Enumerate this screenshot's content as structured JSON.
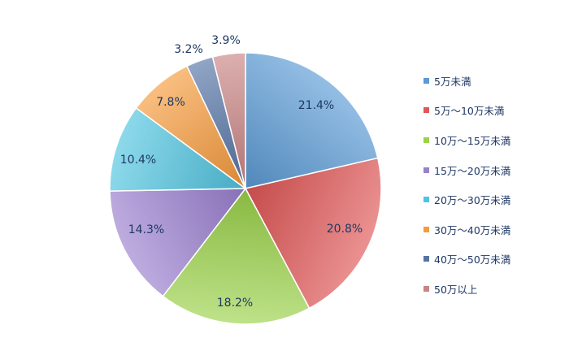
{
  "chart_data": {
    "type": "pie",
    "title": "",
    "series": [
      {
        "categories": [
          "5万未満",
          "5万～10万未満",
          "10万～15万未満",
          "15万～20万未満",
          "20万～30万未満",
          "30万～40万未満",
          "40万～50万未満",
          "50万以上"
        ],
        "values": [
          21.4,
          20.8,
          18.2,
          14.3,
          10.4,
          7.8,
          3.2,
          3.9
        ]
      }
    ],
    "data_labels": [
      "21.4%",
      "20.8%",
      "18.2%",
      "14.3%",
      "10.4%",
      "7.8%",
      "3.2%",
      "3.9%"
    ],
    "colors": [
      "#5b9bd5",
      "#e05555",
      "#9bd24a",
      "#9b7fd0",
      "#4fc4e0",
      "#f59b3c",
      "#5574a6",
      "#c98484"
    ],
    "start_angle": "12 o'clock",
    "direction": "clockwise",
    "legend_position": "right"
  }
}
